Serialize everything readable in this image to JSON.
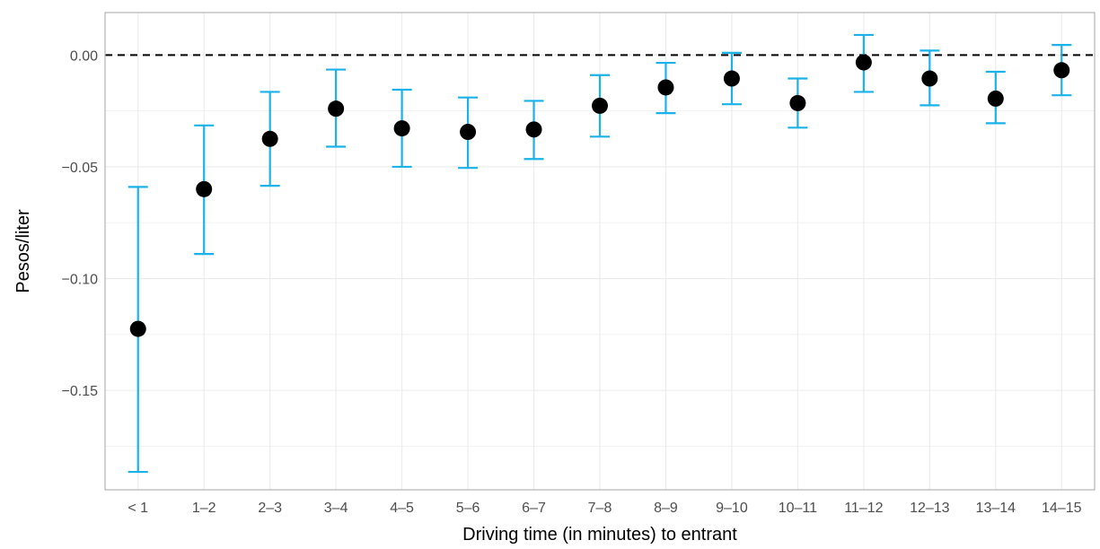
{
  "chart_data": {
    "type": "scatter",
    "title": "",
    "xlabel": "Driving time (in minutes) to entrant",
    "ylabel": "Pesos/liter",
    "categories": [
      "< 1",
      "1–2",
      "2–3",
      "3–4",
      "4–5",
      "5–6",
      "6–7",
      "7–8",
      "8–9",
      "9–10",
      "10–11",
      "11–12",
      "12–13",
      "13–14",
      "14–15"
    ],
    "estimate": [
      -0.1225,
      -0.06,
      -0.0375,
      -0.024,
      -0.0328,
      -0.0344,
      -0.0333,
      -0.0227,
      -0.0145,
      -0.0105,
      -0.0215,
      -0.0033,
      -0.0105,
      -0.0195,
      -0.0068
    ],
    "ci_lower": [
      -0.1865,
      -0.089,
      -0.0585,
      -0.041,
      -0.05,
      -0.0505,
      -0.0465,
      -0.0365,
      -0.026,
      -0.022,
      -0.0325,
      -0.0165,
      -0.0225,
      -0.0305,
      -0.018
    ],
    "ci_upper": [
      -0.059,
      -0.0315,
      -0.0165,
      -0.0065,
      -0.0155,
      -0.019,
      -0.0205,
      -0.009,
      -0.0035,
      0.001,
      -0.0105,
      0.009,
      0.002,
      -0.0075,
      0.0045
    ],
    "yticks": [
      "0.00",
      "−0.05",
      "−0.10",
      "−0.15"
    ],
    "ytick_values": [
      0.0,
      -0.05,
      -0.1,
      -0.15
    ],
    "ylim": [
      -0.1945,
      0.019
    ],
    "reference_line": 0,
    "grid": true,
    "legend": "none",
    "colors": {
      "point": "#000000",
      "errorbar": "#1ab2e8",
      "grid": "#ebebeb",
      "panel_border": "#b3b3b3",
      "reference_line": "#000000"
    }
  }
}
